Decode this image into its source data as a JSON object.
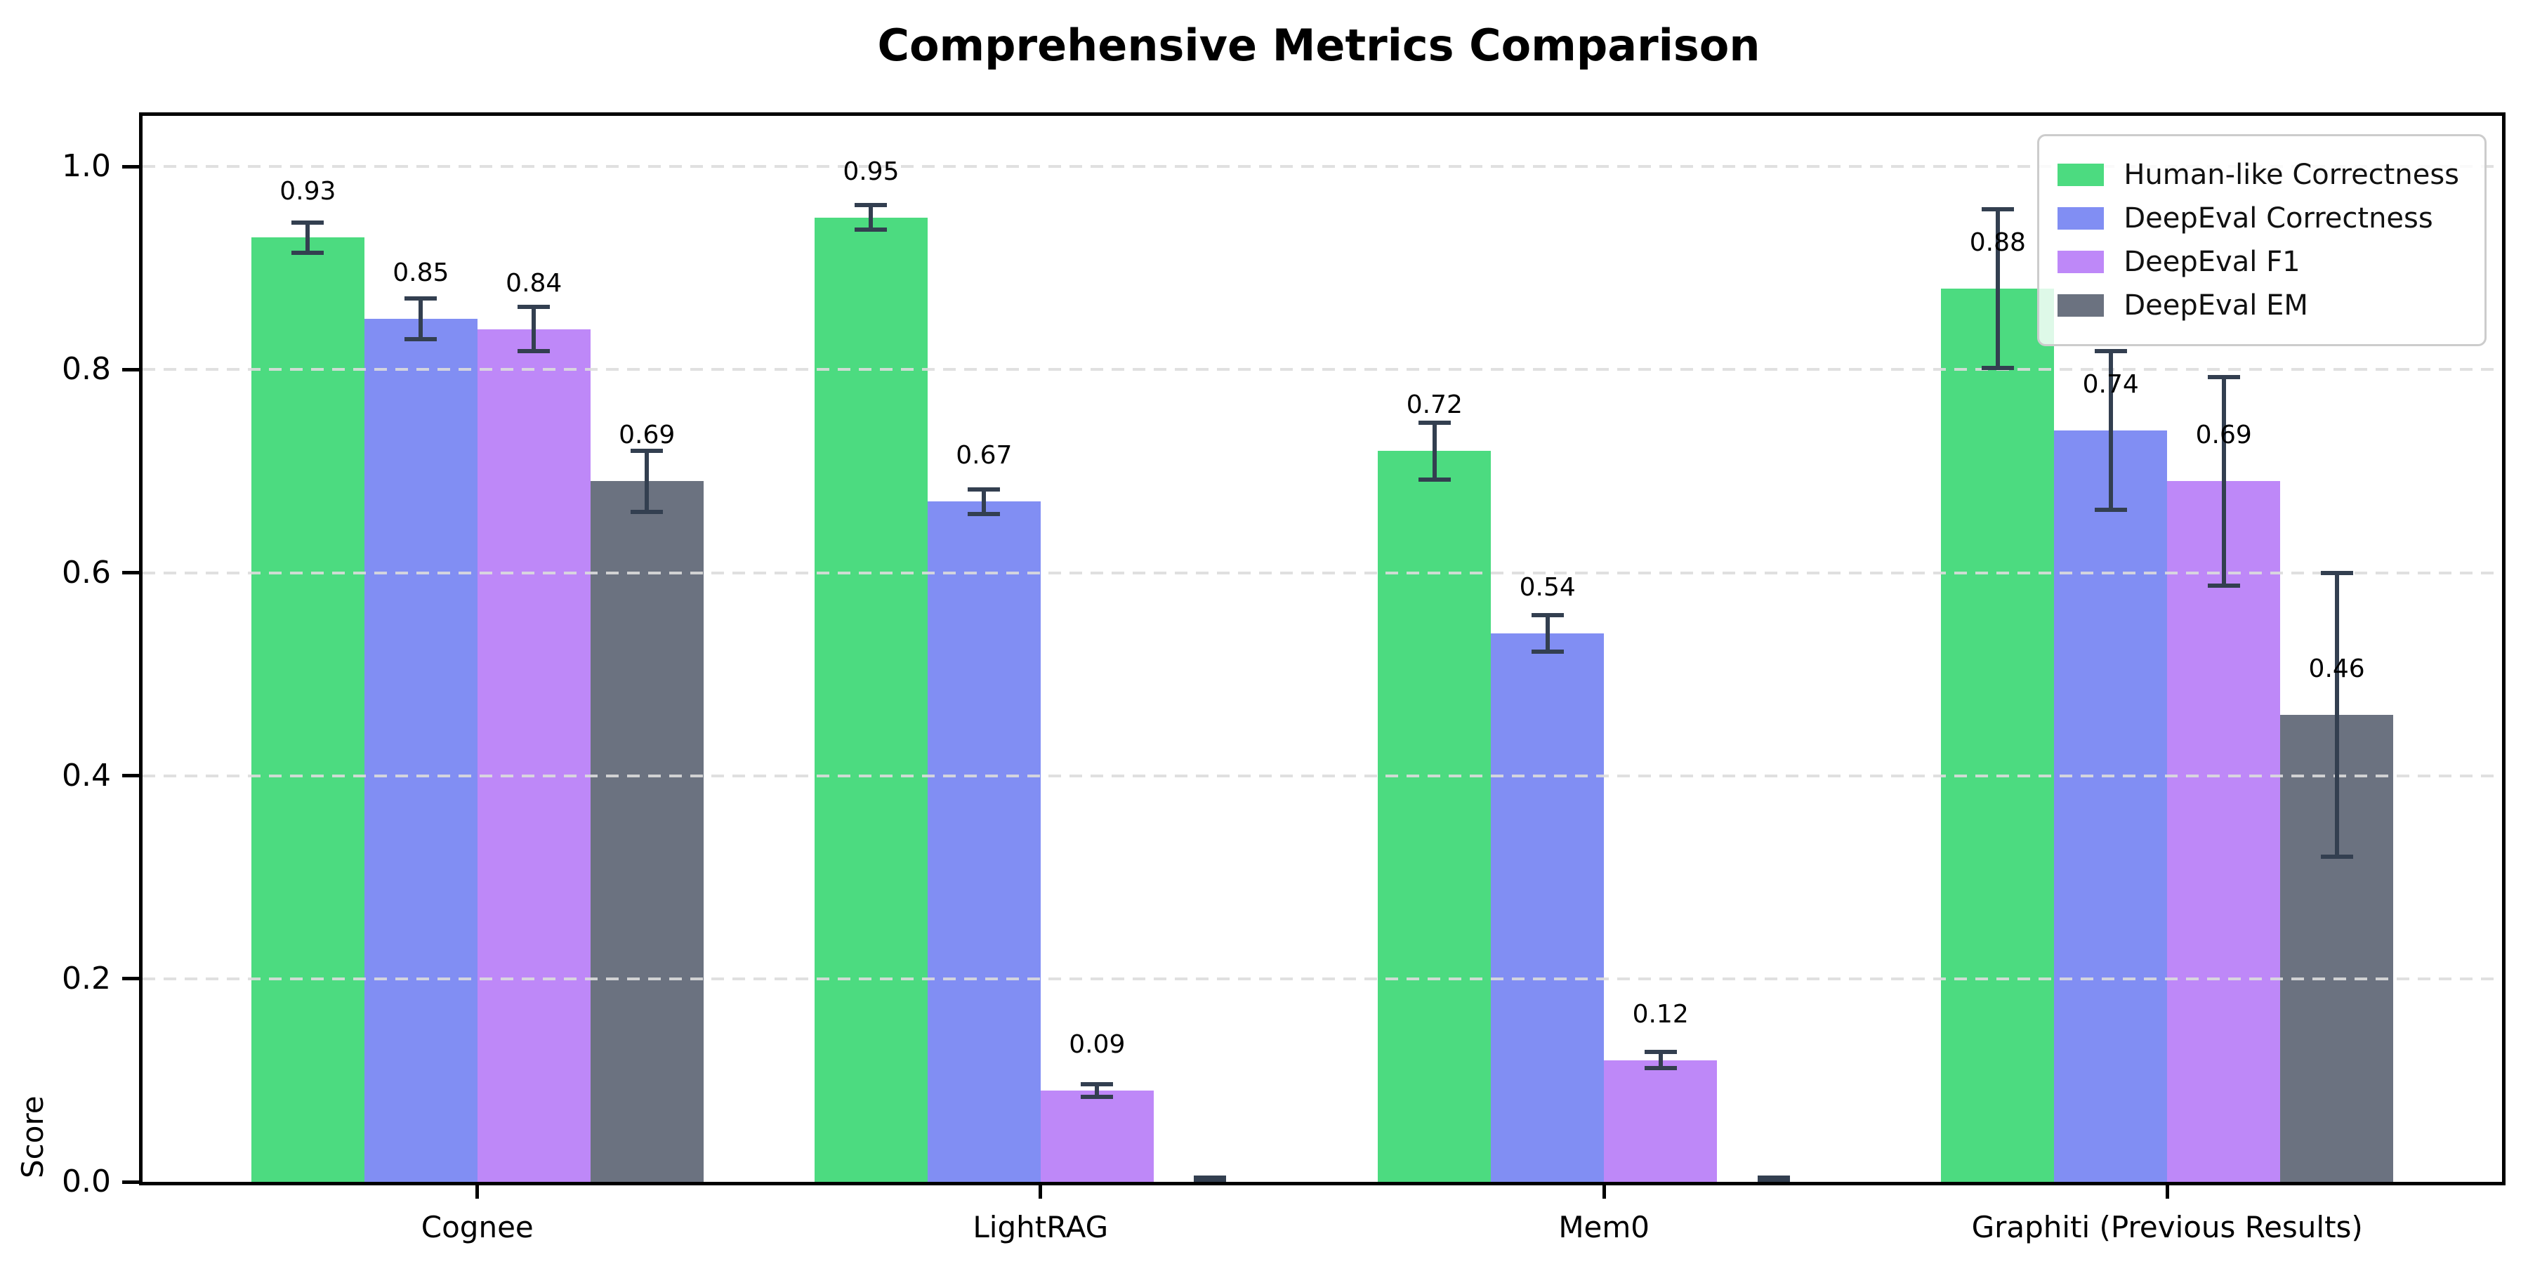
{
  "chart_data": {
    "type": "bar",
    "title": "Comprehensive Metrics Comparison",
    "ylabel": "Score",
    "xlabel": "",
    "categories": [
      "Cognee",
      "LightRAG",
      "Mem0",
      "Graphiti (Previous Results)"
    ],
    "series": [
      {
        "name": "Human-like Correctness",
        "color": "#4cdb80",
        "values": [
          0.93,
          0.95,
          0.72,
          0.88
        ],
        "errors": [
          0.015,
          0.012,
          0.028,
          0.078
        ],
        "labels": [
          "0.93",
          "0.95",
          "0.72",
          "0.88"
        ]
      },
      {
        "name": "DeepEval Correctness",
        "color": "#818ef3",
        "values": [
          0.85,
          0.67,
          0.54,
          0.74
        ],
        "errors": [
          0.02,
          0.012,
          0.018,
          0.078
        ],
        "labels": [
          "0.85",
          "0.67",
          "0.54",
          "0.74"
        ]
      },
      {
        "name": "DeepEval F1",
        "color": "#be88f8",
        "values": [
          0.84,
          0.09,
          0.12,
          0.69
        ],
        "errors": [
          0.022,
          0.006,
          0.008,
          0.103
        ],
        "labels": [
          "0.84",
          "0.09",
          "0.12",
          "0.69"
        ]
      },
      {
        "name": "DeepEval EM",
        "color": "#6b7280",
        "values": [
          0.69,
          0.0,
          0.0,
          0.46
        ],
        "errors": [
          0.03,
          0.004,
          0.004,
          0.14
        ],
        "labels": [
          "0.69",
          "",
          "",
          "0.46"
        ]
      }
    ],
    "yticks": [
      0.0,
      0.2,
      0.4,
      0.6,
      0.8,
      1.0
    ],
    "ytick_labels": [
      "0.0",
      "0.2",
      "0.4",
      "0.6",
      "0.8",
      "1.0"
    ],
    "ylim": [
      0,
      1.05
    ],
    "grid": {
      "axis": "y",
      "style": "dashed",
      "color": "#dcdcdc"
    },
    "legend_position": "upper right",
    "error_bar_color": "#333f50",
    "layout": {
      "group_centers_frac": [
        0.1419,
        0.3806,
        0.6194,
        0.8581
      ],
      "bar_width_frac": 0.0479
    }
  }
}
